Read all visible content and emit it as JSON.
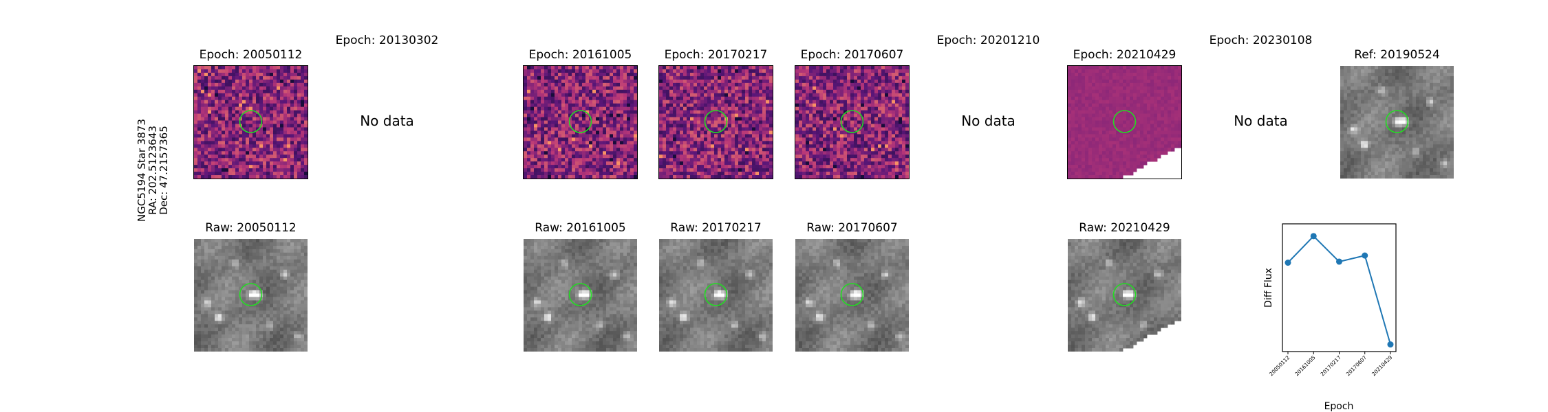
{
  "row_label": {
    "name": "NGC5194 Star 3873",
    "ra": "RA: 202.5123643",
    "dec": "Dec: 47.2157365"
  },
  "no_data_text": "No data",
  "top_row": [
    {
      "title": "Epoch: 20050112",
      "has_data": true,
      "style": "diff-a"
    },
    {
      "title": "Epoch: 20130302",
      "has_data": false
    },
    {
      "title": "Epoch: 20161005",
      "has_data": true,
      "style": "diff-a"
    },
    {
      "title": "Epoch: 20170217",
      "has_data": true,
      "style": "diff-a"
    },
    {
      "title": "Epoch: 20170607",
      "has_data": true,
      "style": "diff-a"
    },
    {
      "title": "Epoch: 20201210",
      "has_data": false
    },
    {
      "title": "Epoch: 20210429",
      "has_data": true,
      "style": "diff-b"
    },
    {
      "title": "Epoch: 20230108",
      "has_data": false
    },
    {
      "title": "Ref: 20190524",
      "has_data": true,
      "style": "raw"
    }
  ],
  "bottom_row": [
    {
      "title": "Raw: 20050112",
      "has_data": true
    },
    {
      "title": "",
      "has_data": false
    },
    {
      "title": "Raw: 20161005",
      "has_data": true
    },
    {
      "title": "Raw: 20170217",
      "has_data": true
    },
    {
      "title": "Raw: 20170607",
      "has_data": true
    },
    {
      "title": "",
      "has_data": false
    },
    {
      "title": "Raw: 20210429",
      "has_data": true
    },
    {
      "title": "",
      "has_data": false
    }
  ],
  "colors": {
    "aperture_circle": "#22dd22",
    "series_line": "#1f77b4",
    "diff_colormap_dark": "#3b0f70",
    "diff_colormap_mid": "#b73779",
    "diff_colormap_bright": "#fc8961",
    "raw_colormap_dark": "#3a3a3a",
    "raw_colormap_bright": "#ffffff"
  },
  "chart_data": {
    "type": "line",
    "title": "",
    "xlabel": "Epoch",
    "ylabel": "Diff Flux",
    "categories": [
      "20050112",
      "20161005",
      "20170217",
      "20170607",
      "20210429"
    ],
    "values": [
      0.72,
      0.98,
      0.73,
      0.79,
      -0.08
    ],
    "ylim": [
      -0.15,
      1.1
    ],
    "grid": false,
    "markers": true
  }
}
